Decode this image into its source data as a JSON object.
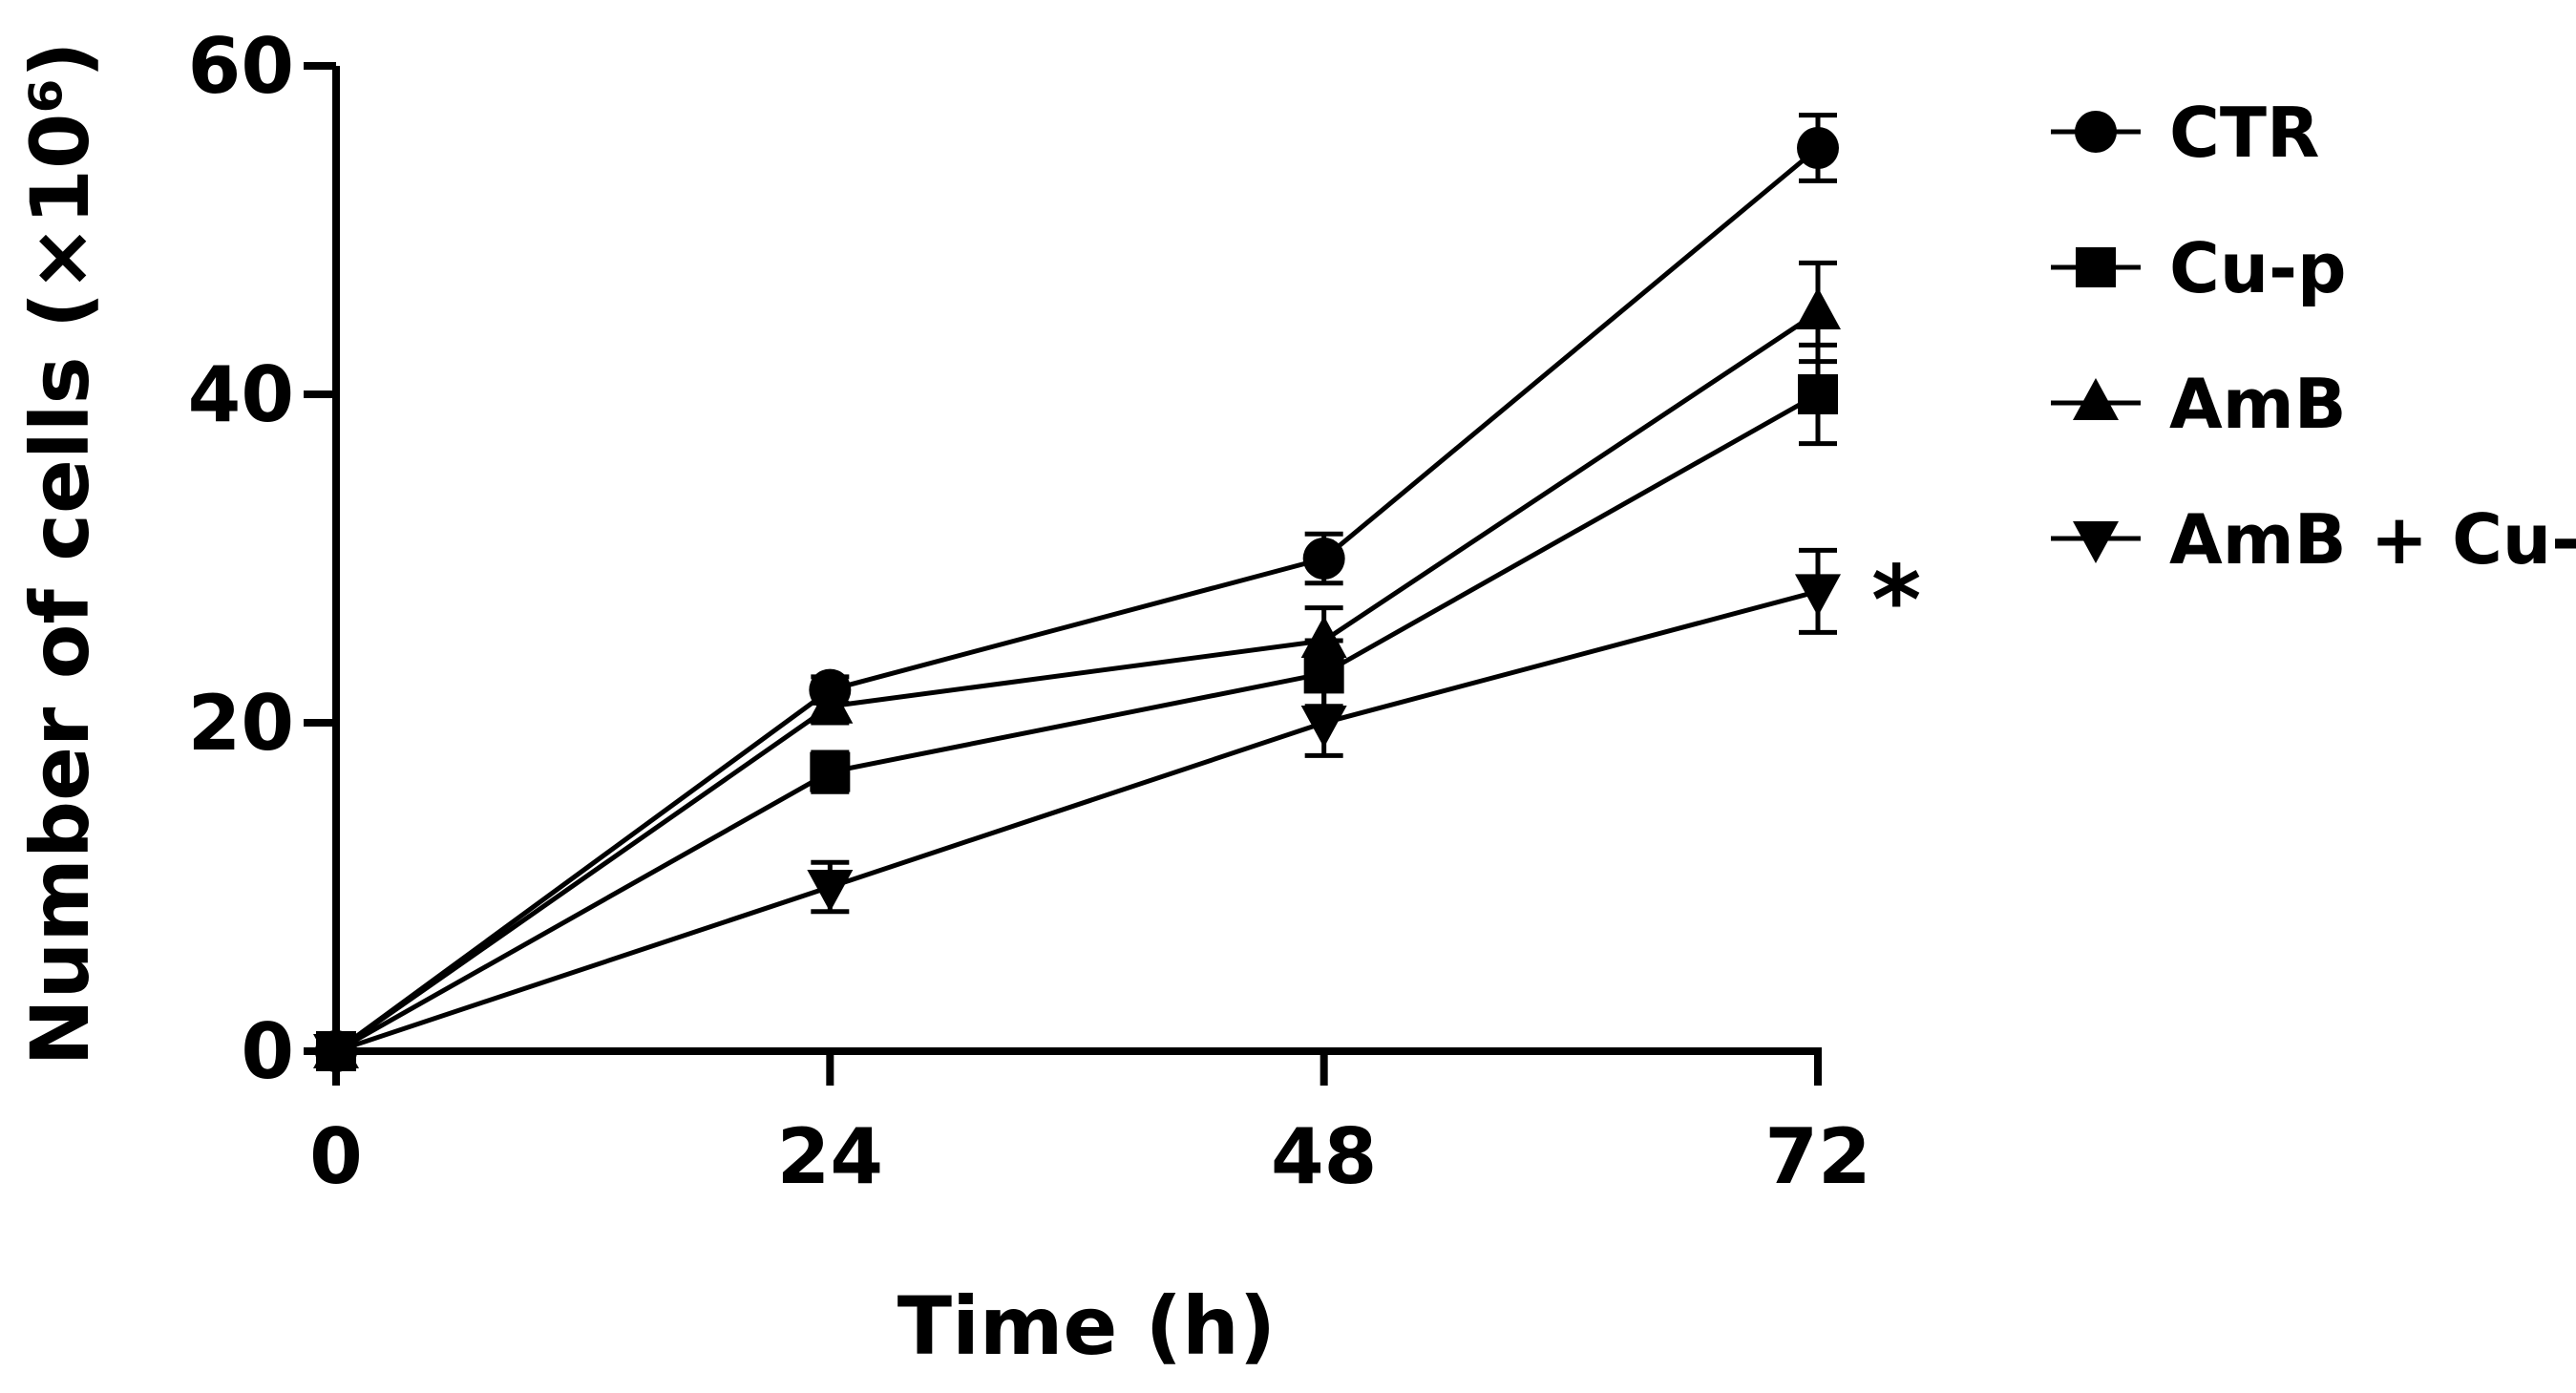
{
  "chart_data": {
    "type": "line",
    "xlabel": "Time (h)",
    "ylabel": "Number of cells (×10⁶)",
    "x": [
      0,
      24,
      48,
      72
    ],
    "x_tick_labels": [
      "0",
      "24",
      "48",
      "72"
    ],
    "xlim": [
      0,
      72
    ],
    "y_tick_labels": [
      "0",
      "20",
      "40",
      "60"
    ],
    "y_ticks": [
      0,
      20,
      40,
      60
    ],
    "ylim": [
      0,
      60
    ],
    "grid": false,
    "legend_position": "top-right",
    "color": "#000000",
    "series": [
      {
        "name": "CTR",
        "marker": "circle",
        "values": [
          0,
          22,
          30,
          55
        ],
        "errors": [
          0,
          0.8,
          1.5,
          2
        ]
      },
      {
        "name": "Cu-p",
        "marker": "square",
        "values": [
          0,
          17,
          23,
          40
        ],
        "errors": [
          0,
          1.2,
          2,
          3
        ]
      },
      {
        "name": "AmB",
        "marker": "triangle-up",
        "values": [
          0,
          21,
          25,
          45
        ],
        "errors": [
          0,
          1,
          2,
          3
        ]
      },
      {
        "name": "AmB + Cu-p",
        "marker": "triangle-down",
        "values": [
          0,
          10,
          20,
          28
        ],
        "errors": [
          0,
          1.5,
          2,
          2.5
        ]
      }
    ],
    "annotations": [
      {
        "text": "*",
        "x": 72,
        "series": "AmB + Cu-p"
      }
    ]
  }
}
